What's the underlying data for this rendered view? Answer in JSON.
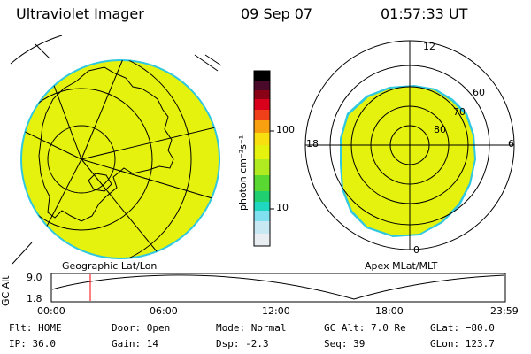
{
  "header": {
    "instrument": "Ultraviolet Imager",
    "date": "09 Sep 07",
    "time": "01:57:33 UT"
  },
  "colors": {
    "image_fill": "#e4f20e",
    "grid": "#000000",
    "edge": "#30c8e0"
  },
  "left_map": {
    "caption": "Geographic Lat/Lon"
  },
  "right_map": {
    "caption": "Apex  MLat/MLT",
    "mlt_labels": [
      "12",
      "18",
      "6",
      "0"
    ],
    "lat_labels": [
      "60",
      "70",
      "80"
    ]
  },
  "colorbar": {
    "unit_label": "photon cm⁻²s⁻¹",
    "tick_labels": [
      "100",
      "10"
    ],
    "scale": "log"
  },
  "altitude_plot": {
    "y_axis_label": "GC Alt",
    "y_ticks": [
      "9.0",
      "1.8"
    ],
    "x_ticks": [
      "00:00",
      "06:00",
      "12:00",
      "18:00",
      "23:59"
    ],
    "marker_time": "01:57",
    "marker_color": "#ff0000"
  },
  "status": {
    "flt": "Flt: HOME",
    "ip": "IP: 36.0",
    "door": "Door: Open",
    "gain": "Gain: 14",
    "mode": "Mode: Normal",
    "dsp": "Dsp:    -2.3",
    "gc_alt": "GC Alt: 7.0 Re",
    "seq": "Seq: 39",
    "glat": "GLat: −80.0",
    "glon": "GLon: 123.7"
  }
}
